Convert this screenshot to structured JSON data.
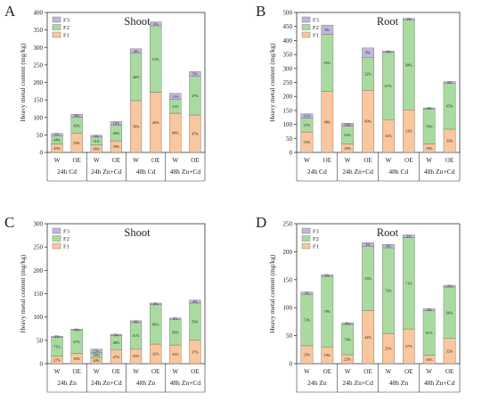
{
  "chart_data": [
    {
      "panel_letter": "A",
      "title": "Shoot",
      "type": "bar",
      "stacked": true,
      "ylabel": "Heavy metal content (mg/kg)",
      "ylim": [
        0,
        400
      ],
      "yticks": [
        0,
        50,
        100,
        150,
        200,
        250,
        300,
        350,
        400
      ],
      "legend": {
        "placement": "top-left",
        "entries": [
          "F3",
          "F2",
          "F1"
        ]
      },
      "categories": [
        "W",
        "OE",
        "W",
        "OE",
        "W",
        "OE",
        "W",
        "OE"
      ],
      "groups": [
        "24h Cd",
        "24h Zn+Cd",
        "48h Cd",
        "48h Zn+Cd"
      ],
      "series": [
        {
          "name": "F1",
          "values": [
            24,
            54,
            21,
            33,
            148,
            172,
            112,
            107
          ],
          "labels": [
            "45%",
            "50%",
            "46%",
            "39%",
            "50%",
            "46%",
            "68%",
            "47%"
          ]
        },
        {
          "name": "F2",
          "values": [
            24,
            46,
            23,
            44,
            136,
            190,
            39,
            110
          ],
          "labels": [
            "44%",
            "42%",
            "51%",
            "49%",
            "46%",
            "51%",
            "21%",
            "47%"
          ]
        },
        {
          "name": "F3",
          "values": [
            6,
            9,
            5,
            11,
            12,
            11,
            18,
            14
          ],
          "labels": [
            "6%",
            "9%",
            "3%",
            "12%",
            "4%",
            "3%",
            "11%",
            "5%"
          ]
        }
      ]
    },
    {
      "panel_letter": "B",
      "title": "Root",
      "type": "bar",
      "stacked": true,
      "ylabel": "Heavy metal content (mg/kg)",
      "ylim": [
        0,
        500
      ],
      "yticks": [
        0,
        50,
        100,
        150,
        200,
        250,
        300,
        350,
        400,
        450,
        500
      ],
      "legend": {
        "placement": "top-left",
        "entries": [
          "F3",
          "F2",
          "F1"
        ]
      },
      "categories": [
        "W",
        "OE",
        "W",
        "OE",
        "W",
        "OE",
        "W",
        "OE"
      ],
      "groups": [
        "24h Cd",
        "24h Zn+Cd",
        "48h Cd",
        "48h Zn+Cd"
      ],
      "series": [
        {
          "name": "F1",
          "values": [
            73,
            218,
            30,
            222,
            117,
            152,
            30,
            83
          ],
          "labels": [
            "53%",
            "48%",
            "29%",
            "60%",
            "32%",
            "31%",
            "19%",
            "33%"
          ]
        },
        {
          "name": "F2",
          "values": [
            50,
            204,
            64,
            118,
            240,
            322,
            126,
            165
          ],
          "labels": [
            "37%",
            "45%",
            "61%",
            "32%",
            "67%",
            "68%",
            "79%",
            "65%"
          ]
        },
        {
          "name": "F3",
          "values": [
            15,
            33,
            10,
            33,
            5,
            5,
            3,
            5
          ],
          "labels": [
            "11%",
            "8%",
            "10%",
            "9%",
            "1%",
            "1%",
            "2%",
            "2%"
          ]
        }
      ]
    },
    {
      "panel_letter": "C",
      "title": "Shoot",
      "type": "bar",
      "stacked": true,
      "ylabel": "Heavy metal content (mg/kg)",
      "ylim": [
        0,
        300
      ],
      "yticks": [
        0,
        50,
        100,
        150,
        200,
        250,
        300
      ],
      "legend": {
        "placement": "top-left",
        "entries": [
          "F3",
          "F2",
          "F1"
        ]
      },
      "categories": [
        "W",
        "OE",
        "W",
        "OE",
        "W",
        "OE",
        "W",
        "OE"
      ],
      "groups": [
        "24h Zn",
        "24h Zn+Cd",
        "48h Zn",
        "48h Zn+Cd"
      ],
      "series": [
        {
          "name": "F1",
          "values": [
            16,
            22,
            13,
            30,
            32,
            42,
            40,
            50
          ],
          "labels": [
            "27%",
            "30%",
            "40%",
            "47%",
            "35%",
            "32%",
            "41%",
            "37%"
          ]
        },
        {
          "name": "F2",
          "values": [
            41,
            50,
            10,
            30,
            56,
            85,
            55,
            80
          ],
          "labels": [
            "71%",
            "67%",
            "35%",
            "48%",
            "61%",
            "66%",
            "56%",
            "59%"
          ]
        },
        {
          "name": "F3",
          "values": [
            2,
            2,
            8,
            3,
            4,
            3,
            3,
            6
          ],
          "labels": [
            "2%",
            "3%",
            "25%",
            "5%",
            "4%",
            "2%",
            "3%",
            "4%"
          ]
        }
      ]
    },
    {
      "panel_letter": "D",
      "title": "Root",
      "type": "bar",
      "stacked": true,
      "ylabel": "Heavy metal content (mg/kg)",
      "ylim": [
        0,
        250
      ],
      "yticks": [
        0,
        50,
        100,
        150,
        200,
        250
      ],
      "legend": {
        "placement": "top-left",
        "entries": [
          "F3",
          "F2",
          "F1"
        ]
      },
      "categories": [
        "W",
        "OE",
        "W",
        "OE",
        "W",
        "OE",
        "W",
        "OE"
      ],
      "groups": [
        "24h Zn",
        "24h Zn+Cd",
        "48h Zn",
        "48h Zn+Cd"
      ],
      "series": [
        {
          "name": "F1",
          "values": [
            32,
            30,
            16,
            95,
            54,
            62,
            15,
            45
          ],
          "labels": [
            "25%",
            "19%",
            "22%",
            "44%",
            "25%",
            "27%",
            "16%",
            "32%"
          ]
        },
        {
          "name": "F2",
          "values": [
            92,
            126,
            54,
            114,
            153,
            163,
            80,
            92
          ],
          "labels": [
            "72%",
            "79%",
            "74%",
            "53%",
            "72%",
            "71%",
            "81%",
            "66%"
          ]
        },
        {
          "name": "F3",
          "values": [
            4,
            3,
            3,
            7,
            6,
            5,
            3,
            3
          ],
          "labels": [
            "3%",
            "2%",
            "4%",
            "3%",
            "3%",
            "2%",
            "3%",
            "2%"
          ]
        }
      ]
    }
  ],
  "colors": {
    "F1": "#f9c69d",
    "F2": "#a9dba1",
    "F3": "#c3b6de",
    "axis": "#333333"
  }
}
